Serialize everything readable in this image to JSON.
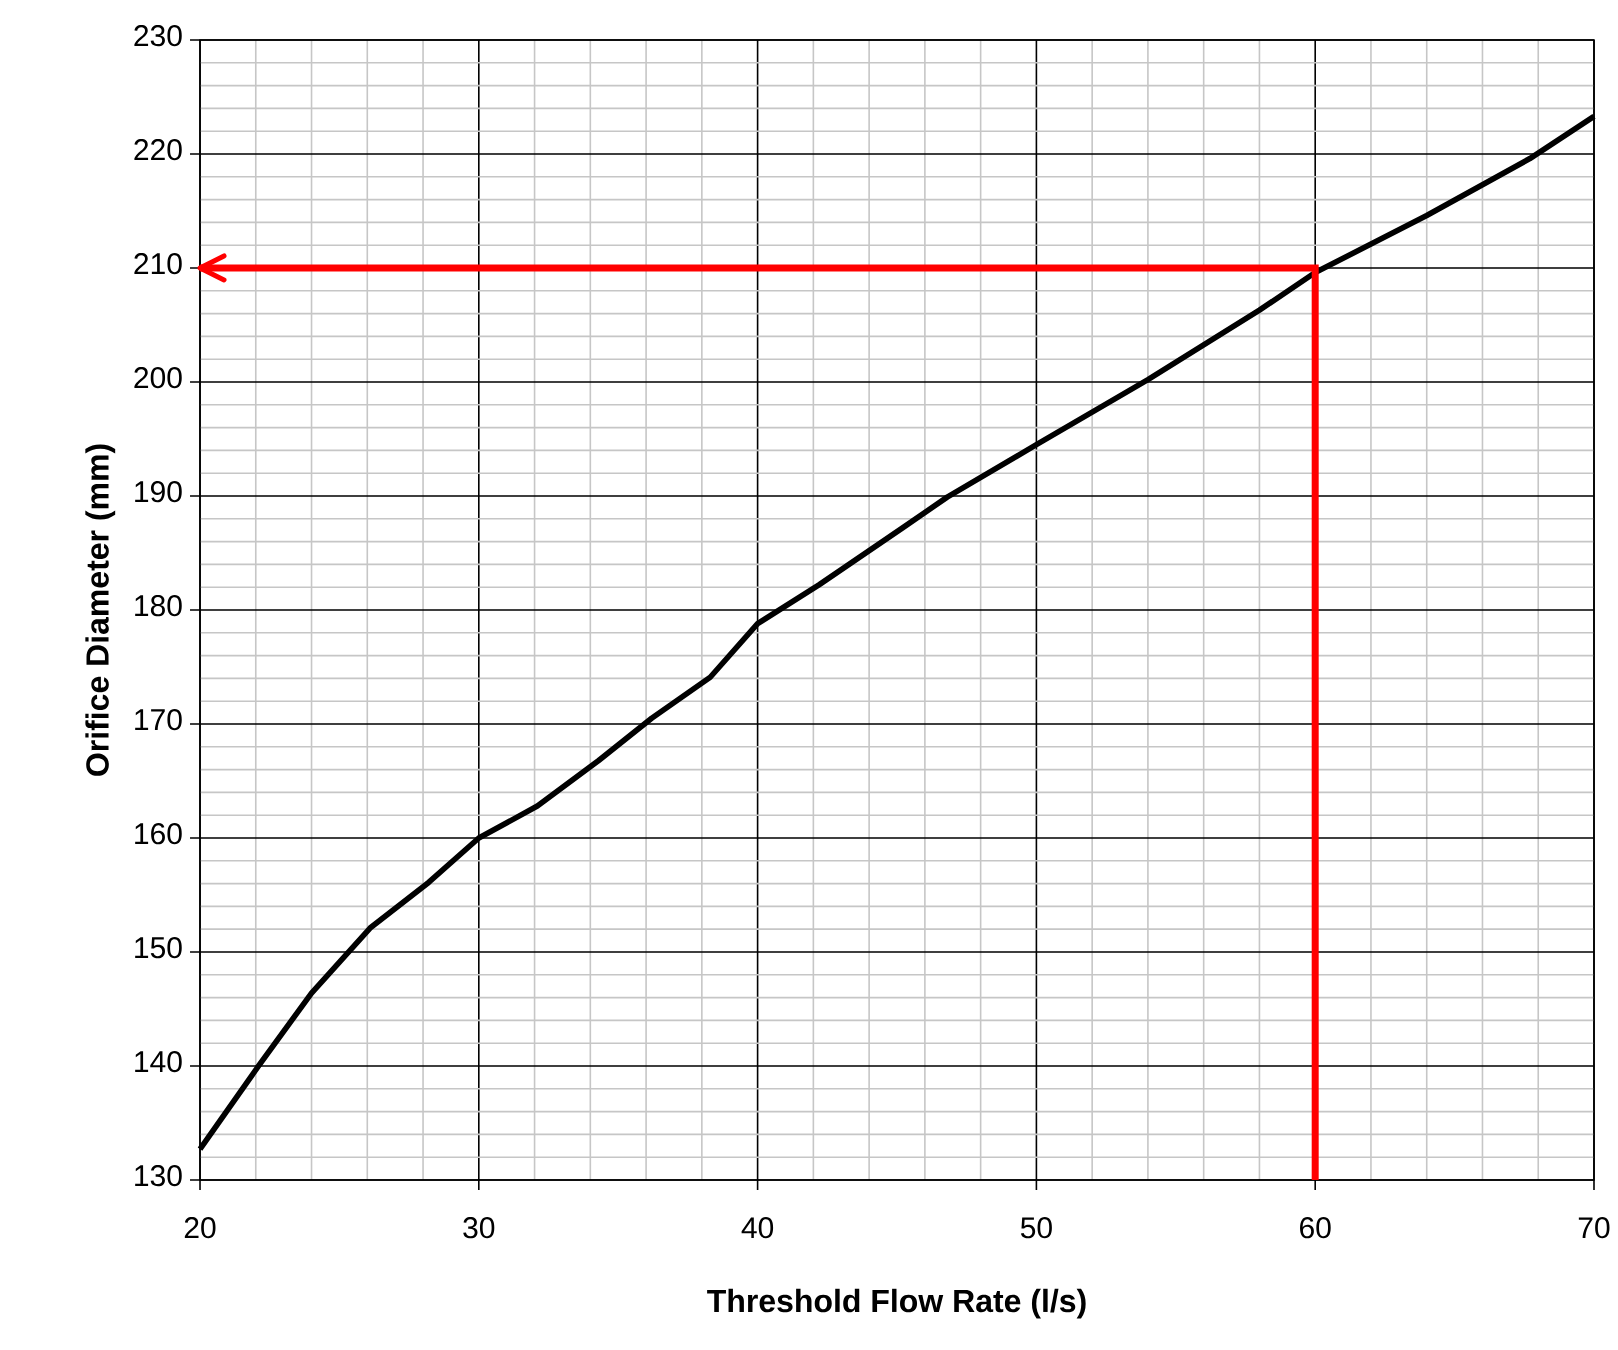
{
  "chart_data": {
    "type": "line",
    "xlabel": "Threshold Flow Rate (l/s)",
    "ylabel": "Orifice Diameter (mm)",
    "xlim": [
      20,
      70
    ],
    "xticks": [
      20,
      30,
      40,
      50,
      60,
      70
    ],
    "ylim": [
      130,
      230
    ],
    "yticks": [
      130,
      140,
      150,
      160,
      170,
      180,
      190,
      200,
      210,
      220,
      230
    ],
    "grid": true,
    "line_style": "solid",
    "series": [
      {
        "color": "#000000",
        "x": [
          20,
          22.1,
          24,
          26.1,
          28.2,
          30,
          32.1,
          34.3,
          36.2,
          38.3,
          40,
          42.2,
          45.2,
          46.8,
          50,
          54,
          58,
          60,
          64,
          67.7,
          70
        ],
        "values": [
          132.7,
          140,
          146.4,
          152.1,
          156.1,
          160,
          162.8,
          166.8,
          170.5,
          174.1,
          178.8,
          182.2,
          187.2,
          189.9,
          194.5,
          200.2,
          206.3,
          209.6,
          214.6,
          219.6,
          223.3
        ]
      },
      {
        "color": "#ff0000",
        "x": [
          60,
          60,
          20
        ],
        "values": [
          130,
          210,
          210
        ]
      }
    ]
  }
}
